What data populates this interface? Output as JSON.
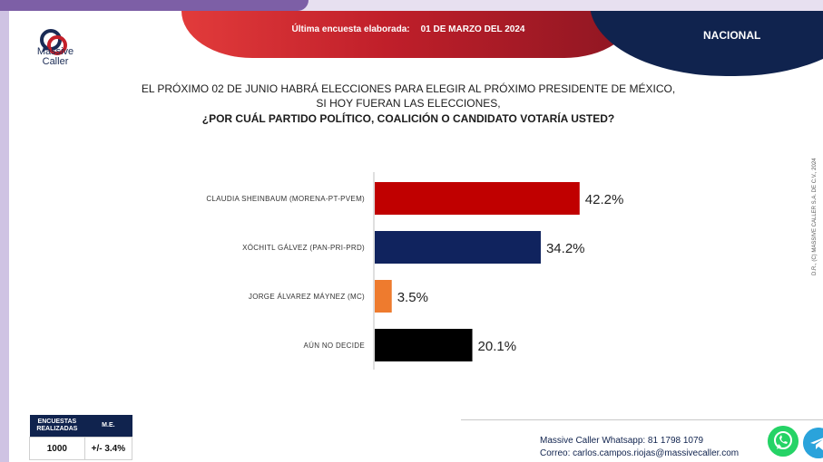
{
  "header": {
    "latest_label": "Última encuesta elaborada:",
    "latest_date": "01 DE MARZO DEL 2024",
    "scope": "NACIONAL"
  },
  "logo": {
    "line1": "Massive",
    "line2": "Caller"
  },
  "question": {
    "line1": "EL PRÓXIMO 02 DE JUNIO HABRÁ ELECCIONES PARA ELEGIR AL PRÓXIMO PRESIDENTE DE MÉXICO,",
    "line2": "SI HOY FUERAN LAS ELECCIONES,",
    "line3": "¿POR CUÁL PARTIDO POLÍTICO, COALICIÓN  O CANDIDATO VOTARÍA USTED?"
  },
  "chart_data": {
    "type": "bar",
    "orientation": "horizontal",
    "categories": [
      "CLAUDIA SHEINBAUM (MORENA-PT-PVEM)",
      "XÓCHITL GÁLVEZ (PAN-PRI-PRD)",
      "JORGE ÁLVAREZ MÁYNEZ (MC)",
      "AÚN NO DECIDE"
    ],
    "values": [
      42.2,
      34.2,
      3.5,
      20.1
    ],
    "value_labels": [
      "42.2%",
      "34.2%",
      "3.5%",
      "20.1%"
    ],
    "colors": [
      "#c00000",
      "#10235e",
      "#ee7b2e",
      "#000000"
    ],
    "xlim": [
      0,
      100
    ],
    "grid": false
  },
  "copyright": "D.R., (C) MASSIVE CALLER S.A. DE C.V., 2024",
  "stats": {
    "surveys_label_1": "ENCUESTAS",
    "surveys_label_2": "REALIZADAS",
    "surveys_value": "1000",
    "me_label": "M.E.",
    "me_value": "+/- 3.4%"
  },
  "contact": {
    "whatsapp": "Massive Caller Whatsapp: 81 1798 1079",
    "email": "Correo: carlos.campos.riojas@massivecaller.com"
  },
  "icons": {
    "whatsapp": "whatsapp-icon",
    "telegram": "telegram-icon"
  }
}
